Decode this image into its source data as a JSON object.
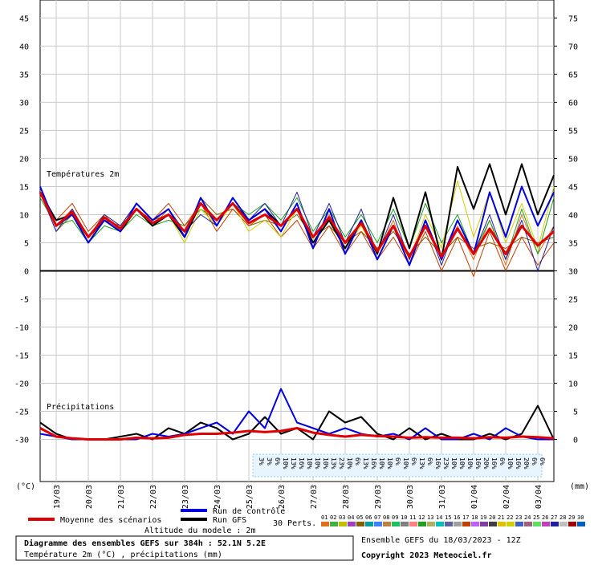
{
  "chart_data": {
    "type": "line",
    "ylabel": "(°C)",
    "y2label": "(mm)",
    "temp_label": "Températures 2m",
    "precip_label": "Précipitations",
    "x": [
      0,
      12,
      24,
      36,
      48,
      60,
      72,
      84,
      96,
      108,
      120,
      132,
      144,
      156,
      168,
      180,
      192,
      204,
      216,
      228,
      240,
      252,
      264,
      276,
      288,
      300,
      312,
      324,
      336,
      348,
      360,
      372,
      384
    ],
    "xlim": [
      0,
      384
    ],
    "xticks": [
      {
        "value": 12,
        "label": "19/03"
      },
      {
        "value": 36,
        "label": "20/03"
      },
      {
        "value": 60,
        "label": "21/03"
      },
      {
        "value": 84,
        "label": "22/03"
      },
      {
        "value": 108,
        "label": "23/03"
      },
      {
        "value": 132,
        "label": "24/03"
      },
      {
        "value": 156,
        "label": "25/03"
      },
      {
        "value": 180,
        "label": "26/03"
      },
      {
        "value": 204,
        "label": "27/03"
      },
      {
        "value": 228,
        "label": "28/03"
      },
      {
        "value": 252,
        "label": "29/03"
      },
      {
        "value": 276,
        "label": "30/03"
      },
      {
        "value": 300,
        "label": "31/03"
      },
      {
        "value": 324,
        "label": "01/04"
      },
      {
        "value": 348,
        "label": "02/04"
      },
      {
        "value": 372,
        "label": "03/04"
      }
    ],
    "ylim": [
      -37.5,
      48.2
    ],
    "yticks": [
      45,
      40,
      35,
      30,
      25,
      20,
      15,
      10,
      5,
      0,
      -5,
      -10,
      -15,
      -20,
      -25,
      -30
    ],
    "y2lim": [
      -7.5,
      78.2
    ],
    "y2ticks": [
      75,
      70,
      65,
      60,
      55,
      50,
      45,
      40,
      35,
      30,
      25,
      20,
      15,
      10,
      5,
      0
    ],
    "grid": true,
    "series": [
      {
        "name": "Moyenne des scénarios",
        "color": "#e00000",
        "values": [
          14,
          8,
          10.5,
          6,
          9.5,
          7.5,
          11,
          8.5,
          10,
          7,
          12,
          9,
          12,
          8.5,
          10,
          8,
          11,
          6,
          9.5,
          5,
          8.5,
          3.5,
          8,
          2.5,
          8,
          2.5,
          7.5,
          3,
          7.5,
          3,
          8,
          4.5,
          7
        ],
        "precip_values": [
          2,
          0.5,
          0.2,
          0,
          0,
          0,
          0.3,
          0.2,
          0.3,
          0.8,
          1,
          1,
          1.2,
          1.5,
          1.3,
          1.5,
          2,
          1.2,
          0.8,
          0.5,
          0.8,
          0.6,
          0.5,
          0.3,
          0.4,
          0.3,
          0.3,
          0.2,
          0.4,
          0.3,
          0.5,
          0.4,
          0.2
        ]
      },
      {
        "name": "Run de contrôle",
        "color": "#0000e0",
        "values": [
          15,
          8,
          10,
          5,
          9,
          7,
          12,
          9,
          11,
          6,
          13,
          8,
          13,
          9,
          11,
          7,
          12,
          4,
          11,
          3,
          9,
          2,
          8,
          1,
          9,
          2,
          9,
          3,
          14,
          6,
          15,
          8,
          14
        ],
        "precip_values": [
          1,
          0.5,
          0,
          0,
          0,
          0,
          0,
          1,
          0.5,
          1,
          2,
          3,
          1,
          5,
          2,
          9,
          3,
          2,
          1,
          2,
          1,
          0.5,
          1,
          0,
          2,
          0,
          0,
          1,
          0,
          2,
          0.5,
          0,
          0
        ]
      },
      {
        "name": "Run GFS",
        "color": "#000000",
        "values": [
          14,
          9,
          10,
          6,
          9,
          7,
          11,
          8,
          10,
          6,
          12,
          9,
          12,
          9,
          11,
          8,
          11,
          5,
          9,
          4,
          9,
          3,
          13,
          4,
          14,
          2,
          18.5,
          11,
          19,
          10,
          19,
          10,
          17
        ],
        "precip_values": [
          3,
          1,
          0,
          0,
          0,
          0.5,
          1,
          0,
          2,
          1,
          3,
          2,
          0,
          1,
          4,
          1,
          2,
          0,
          5,
          3,
          4,
          1,
          0,
          2,
          0,
          1,
          0,
          0,
          1,
          0,
          1,
          6,
          0
        ]
      }
    ],
    "perturbations": {
      "label": "30 Perts.",
      "members": [
        {
          "name": "01",
          "color": "#e07020",
          "values": [
            15,
            8,
            11,
            5,
            10,
            7,
            11,
            8,
            11,
            7,
            12,
            8,
            13,
            9,
            11,
            7,
            12,
            5,
            10,
            4,
            9,
            3,
            9,
            1,
            9,
            2,
            8,
            2,
            9,
            1,
            10,
            3,
            8
          ]
        },
        {
          "name": "02",
          "color": "#40b040"
        },
        {
          "name": "03",
          "color": "#c0c000"
        },
        {
          "name": "04",
          "color": "#a040c0"
        },
        {
          "name": "05",
          "color": "#806000",
          "values": [
            14,
            7,
            10,
            6,
            9,
            8,
            12,
            9,
            10,
            6,
            13,
            10,
            11,
            8,
            9,
            8,
            10,
            6,
            8,
            5,
            7,
            4,
            7,
            3,
            6,
            3,
            6,
            4,
            5,
            4,
            6,
            5,
            6
          ]
        },
        {
          "name": "06",
          "color": "#00a0a0"
        },
        {
          "name": "07",
          "color": "#4080ff"
        },
        {
          "name": "08",
          "color": "#c08040"
        },
        {
          "name": "09",
          "color": "#20c060"
        },
        {
          "name": "10",
          "color": "#808080"
        },
        {
          "name": "11",
          "color": "#ff8080"
        },
        {
          "name": "12",
          "color": "#20a020",
          "values": [
            13,
            8,
            9,
            5,
            8,
            7,
            10,
            8,
            9,
            8,
            11,
            9,
            12,
            10,
            12,
            9,
            13,
            7,
            11,
            6,
            10,
            5,
            11,
            4,
            12,
            5,
            10,
            3,
            9,
            2,
            11,
            3,
            13
          ]
        },
        {
          "name": "13",
          "color": "#b0b060"
        },
        {
          "name": "14",
          "color": "#00c0c0"
        },
        {
          "name": "15",
          "color": "#6060a0"
        },
        {
          "name": "16",
          "color": "#a0a0a0"
        },
        {
          "name": "17",
          "color": "#c04000",
          "values": [
            14,
            9,
            12,
            7,
            10,
            8,
            11,
            9,
            12,
            8,
            12,
            7,
            11,
            8,
            10,
            6,
            9,
            4,
            8,
            3,
            7,
            2,
            6,
            1,
            7,
            0,
            6,
            -1,
            7,
            0,
            6,
            1,
            5
          ]
        },
        {
          "name": "18",
          "color": "#c060ff"
        },
        {
          "name": "19",
          "color": "#8040a0"
        },
        {
          "name": "20",
          "color": "#404040"
        },
        {
          "name": "21",
          "color": "#e0c000"
        },
        {
          "name": "22",
          "color": "#d0d000",
          "values": [
            15,
            8,
            10,
            6,
            9,
            7,
            11,
            8,
            10,
            5,
            11,
            8,
            12,
            7,
            9,
            6,
            11,
            5,
            9,
            4,
            8,
            3,
            8,
            2,
            10,
            4,
            16,
            6,
            14,
            5,
            12,
            4,
            15
          ]
        },
        {
          "name": "23",
          "color": "#4060c0"
        },
        {
          "name": "24",
          "color": "#a06080"
        },
        {
          "name": "25",
          "color": "#60e060"
        },
        {
          "name": "26",
          "color": "#c040c0"
        },
        {
          "name": "27",
          "color": "#2020a0",
          "values": [
            14,
            7,
            11,
            6,
            10,
            8,
            12,
            9,
            11,
            7,
            10,
            8,
            13,
            9,
            12,
            8,
            14,
            6,
            12,
            5,
            11,
            3,
            10,
            2,
            9,
            1,
            9,
            3,
            10,
            2,
            9,
            0,
            8
          ]
        },
        {
          "name": "28",
          "color": "#c0c0c0"
        },
        {
          "name": "29",
          "color": "#a00000"
        },
        {
          "name": "30",
          "color": "#0060c0"
        }
      ]
    },
    "snow_risk": {
      "x": [
        162,
        168,
        174,
        180,
        186,
        192,
        198,
        204,
        210,
        216,
        222,
        228,
        234,
        240,
        246,
        252,
        258,
        264,
        270,
        276,
        282,
        288,
        294,
        300,
        306,
        312,
        318,
        324,
        330,
        336,
        342,
        348,
        354,
        360,
        366,
        372
      ],
      "values": [
        3,
        3,
        6,
        10,
        13,
        16,
        10,
        10,
        10,
        13,
        23,
        10,
        6,
        13,
        16,
        10,
        10,
        6,
        10,
        6,
        13,
        6,
        16,
        23,
        10,
        10,
        10,
        16,
        20,
        16,
        6,
        10,
        16,
        20,
        6,
        6
      ],
      "value_labels": [
        "3%",
        "3%",
        "6%",
        "10%",
        "13%",
        "16%",
        "10%",
        "10%",
        "10%",
        "13%",
        "23%",
        "10%",
        "6%",
        "13%",
        "16%",
        "10%",
        "10%",
        "6%",
        "10%",
        "6%",
        "13%",
        "6%",
        "16%",
        "23%",
        "10%",
        "10%",
        "10%",
        "16%",
        "20%",
        "16%",
        "6%",
        "10%",
        "16%",
        "20%",
        "6%",
        "6%"
      ]
    },
    "altitude": "Altitude du modele : 2m",
    "title": "Diagramme des ensembles GEFS sur 384h : 52.1N 5.2E",
    "subtitle": "Température 2m (°C) , précipitations (mm)",
    "run_info": "Ensemble GEFS du 18/03/2023 - 12Z",
    "copyright": "Copyright 2023 Meteociel.fr"
  }
}
